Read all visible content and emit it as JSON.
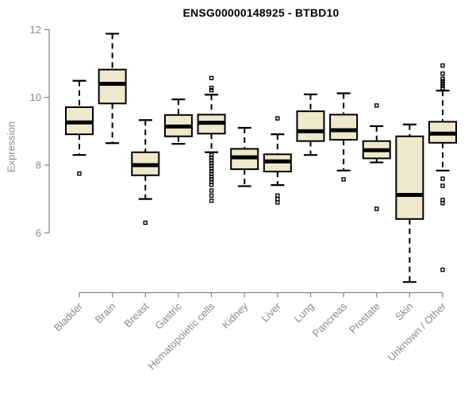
{
  "chart_data": {
    "type": "boxplot",
    "title": "ENSG00000148925 - BTBD10",
    "ylabel": "Expression",
    "xlabel": "",
    "y_ticks": [
      12,
      10,
      8,
      6
    ],
    "ylim": [
      4.2,
      12.2
    ],
    "grid": false,
    "legend": "none",
    "categories": [
      "Bladder",
      "Brain",
      "Breast",
      "Gastric",
      "Hematopoietic cells",
      "Kidney",
      "Liver",
      "Lung",
      "Pancreas",
      "Prostate",
      "Skin",
      "Unknown / Other"
    ],
    "series": [
      {
        "name": "Bladder",
        "whisker_low": 8.3,
        "q1": 8.91,
        "median": 9.26,
        "q3": 9.71,
        "whisker_high": 10.49,
        "outliers": [
          7.75
        ]
      },
      {
        "name": "Brain",
        "whisker_low": 8.65,
        "q1": 9.82,
        "median": 10.4,
        "q3": 10.82,
        "whisker_high": 11.88,
        "outliers": []
      },
      {
        "name": "Breast",
        "whisker_low": 7.0,
        "q1": 7.7,
        "median": 8.0,
        "q3": 8.38,
        "whisker_high": 9.33,
        "outliers": [
          6.3
        ]
      },
      {
        "name": "Gastric",
        "whisker_low": 8.63,
        "q1": 8.85,
        "median": 9.14,
        "q3": 9.48,
        "whisker_high": 9.94,
        "outliers": []
      },
      {
        "name": "Hematopoietic cells",
        "whisker_low": 8.38,
        "q1": 8.93,
        "median": 9.25,
        "q3": 9.49,
        "whisker_high": 10.08,
        "outliers": [
          10.57,
          10.28,
          10.21,
          8.3,
          8.22,
          8.14,
          8.06,
          7.98,
          7.9,
          7.82,
          7.74,
          7.66,
          7.58,
          7.5,
          7.42,
          7.25,
          7.1,
          6.95
        ]
      },
      {
        "name": "Kidney",
        "whisker_low": 7.38,
        "q1": 7.88,
        "median": 8.23,
        "q3": 8.48,
        "whisker_high": 9.1,
        "outliers": []
      },
      {
        "name": "Liver",
        "whisker_low": 7.41,
        "q1": 7.81,
        "median": 8.11,
        "q3": 8.32,
        "whisker_high": 8.91,
        "outliers": [
          9.38,
          7.1,
          7.0,
          6.9
        ]
      },
      {
        "name": "Lung",
        "whisker_low": 8.3,
        "q1": 8.71,
        "median": 9.0,
        "q3": 9.59,
        "whisker_high": 10.09,
        "outliers": []
      },
      {
        "name": "Pancreas",
        "whisker_low": 7.84,
        "q1": 8.75,
        "median": 9.03,
        "q3": 9.49,
        "whisker_high": 10.12,
        "outliers": [
          7.58
        ]
      },
      {
        "name": "Prostate",
        "whisker_low": 8.08,
        "q1": 8.2,
        "median": 8.44,
        "q3": 8.71,
        "whisker_high": 9.15,
        "outliers": [
          9.76,
          6.71
        ]
      },
      {
        "name": "Skin",
        "whisker_low": 4.55,
        "q1": 6.41,
        "median": 7.12,
        "q3": 8.85,
        "whisker_high": 9.2,
        "outliers": []
      },
      {
        "name": "Unknown / Other",
        "whisker_low": 7.84,
        "q1": 8.66,
        "median": 8.93,
        "q3": 9.28,
        "whisker_high": 10.2,
        "outliers": [
          10.94,
          10.7,
          10.55,
          10.48,
          10.41,
          10.34,
          10.27,
          7.6,
          7.39,
          6.97,
          6.88,
          4.91
        ]
      }
    ],
    "colors": {
      "box_fill": "#EEE9CD",
      "box_stroke": "#000000",
      "median": "#000000",
      "whisker": "#000000",
      "axis": "#8a8a8a",
      "tick_label": "#8a8a8a",
      "title": "#000000",
      "background": "#ffffff"
    }
  }
}
